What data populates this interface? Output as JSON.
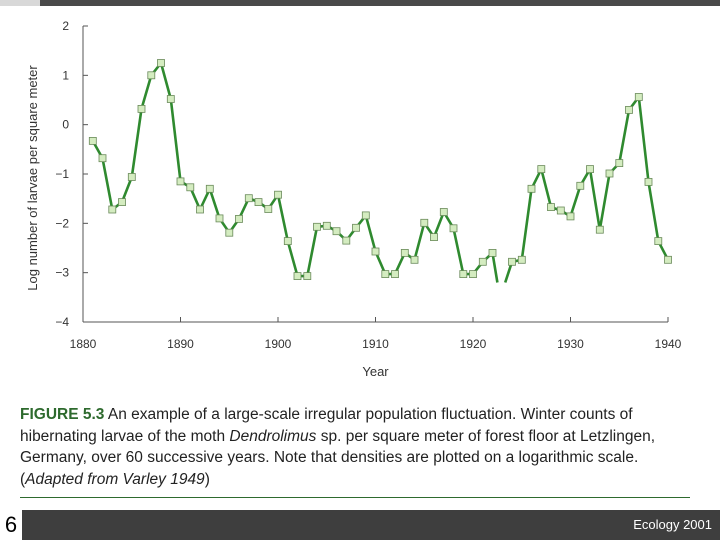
{
  "chart_data": {
    "type": "line",
    "xlabel": "Year",
    "ylabel": "Log number of larvae per square meter",
    "xlim": [
      1880,
      1940
    ],
    "ylim": [
      -4,
      2
    ],
    "x_ticks": [
      "1880",
      "1890",
      "1900",
      "1910",
      "1920",
      "1930",
      "1940"
    ],
    "y_ticks": [
      "2",
      "1",
      "0",
      "−1",
      "−2",
      "−3",
      "−4"
    ],
    "grid": false,
    "series": [
      {
        "points": [
          [
            1881,
            -0.33
          ],
          [
            1882,
            -0.68
          ],
          [
            1883,
            -1.72
          ],
          [
            1884,
            -1.57
          ],
          [
            1885,
            -1.06
          ],
          [
            1886,
            0.32
          ],
          [
            1887,
            1.0
          ],
          [
            1888,
            1.25
          ],
          [
            1889,
            0.52
          ],
          [
            1890,
            -1.15
          ],
          [
            1891,
            -1.27
          ],
          [
            1892,
            -1.72
          ],
          [
            1893,
            -1.3
          ],
          [
            1894,
            -1.9
          ],
          [
            1895,
            -2.19
          ],
          [
            1896,
            -1.91
          ],
          [
            1897,
            -1.49
          ],
          [
            1898,
            -1.57
          ],
          [
            1899,
            -1.71
          ],
          [
            1900,
            -1.42
          ],
          [
            1901,
            -2.36
          ],
          [
            1902,
            -3.07
          ],
          [
            1903,
            -3.07
          ],
          [
            1904,
            -2.07
          ],
          [
            1905,
            -2.05
          ],
          [
            1906,
            -2.16
          ],
          [
            1907,
            -2.35
          ],
          [
            1908,
            -2.09
          ],
          [
            1909,
            -1.84
          ],
          [
            1910,
            -2.57
          ],
          [
            1911,
            -3.03
          ],
          [
            1912,
            -3.03
          ],
          [
            1913,
            -2.6
          ],
          [
            1914,
            -2.74
          ],
          [
            1915,
            -1.99
          ],
          [
            1916,
            -2.28
          ],
          [
            1917,
            -1.77
          ],
          [
            1918,
            -2.1
          ],
          [
            1919,
            -3.03
          ],
          [
            1920,
            -3.03
          ],
          [
            1921,
            -2.78
          ],
          [
            1922,
            -2.6
          ],
          [
            1922.5,
            -3.2
          ]
        ]
      },
      {
        "points": [
          [
            1923.3,
            -3.2
          ],
          [
            1924,
            -2.78
          ],
          [
            1925,
            -2.74
          ],
          [
            1926,
            -1.3
          ],
          [
            1927,
            -0.9
          ],
          [
            1928,
            -1.67
          ],
          [
            1929,
            -1.74
          ],
          [
            1930,
            -1.86
          ],
          [
            1931,
            -1.24
          ],
          [
            1932,
            -0.9
          ],
          [
            1933,
            -2.13
          ],
          [
            1934,
            -0.99
          ],
          [
            1935,
            -0.78
          ],
          [
            1936,
            0.3
          ],
          [
            1937,
            0.56
          ],
          [
            1938,
            -1.16
          ],
          [
            1939,
            -2.36
          ],
          [
            1940,
            -2.74
          ]
        ]
      }
    ],
    "line_color": "#2f8a2f",
    "marker_fill": "#d4ecc0"
  },
  "caption": {
    "label": "FIGURE 5.3",
    "part1": " An example of a large-scale irregular population fluctuation. Winter counts of hibernating larvae of the moth ",
    "species": "Dendrolimus",
    "part2": " sp. per square meter of forest floor at Letzlingen, Germany, over 60 successive years. Note that densities are plotted on a logarithmic scale. (",
    "source": "Adapted from Varley 1949",
    "part3": ")"
  },
  "footer": {
    "slide_number": "6",
    "text": "Ecology 2001"
  }
}
